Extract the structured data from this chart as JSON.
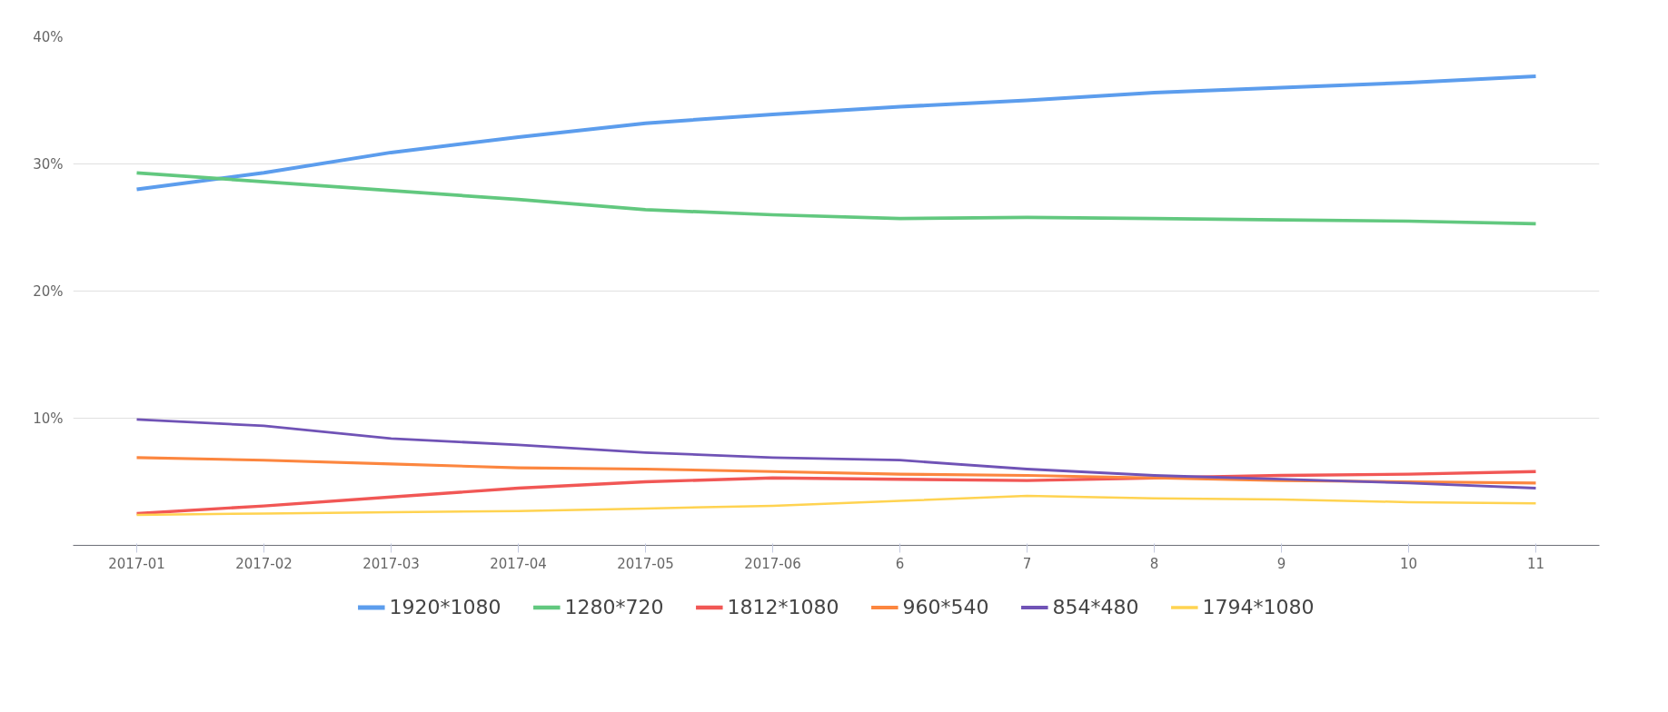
{
  "chart_data": {
    "type": "line",
    "categories": [
      "2017-01",
      "2017-02",
      "2017-03",
      "2017-04",
      "2017-05",
      "2017-06",
      "6",
      "7",
      "8",
      "9",
      "10",
      "11"
    ],
    "series": [
      {
        "name": "1920*1080",
        "color": "#5c9ded",
        "values": [
          28.0,
          29.3,
          30.9,
          32.1,
          33.2,
          33.9,
          34.5,
          35.0,
          35.6,
          36.0,
          36.4,
          36.9
        ]
      },
      {
        "name": "1280*720",
        "color": "#62c87f",
        "values": [
          29.3,
          28.6,
          27.9,
          27.2,
          26.4,
          26.0,
          25.7,
          25.8,
          25.7,
          25.6,
          25.5,
          25.3
        ]
      },
      {
        "name": "1812*1080",
        "color": "#f15755",
        "values": [
          2.5,
          3.1,
          3.8,
          4.5,
          5.0,
          5.3,
          5.2,
          5.1,
          5.3,
          5.5,
          5.6,
          5.8
        ]
      },
      {
        "name": "960*540",
        "color": "#fc863f",
        "values": [
          6.9,
          6.7,
          6.4,
          6.1,
          6.0,
          5.8,
          5.6,
          5.5,
          5.3,
          5.1,
          5.0,
          4.9
        ]
      },
      {
        "name": "854*480",
        "color": "#7053b6",
        "values": [
          9.9,
          9.4,
          8.4,
          7.9,
          7.3,
          6.9,
          6.7,
          6.0,
          5.5,
          5.2,
          4.9,
          4.5
        ]
      },
      {
        "name": "1794*1080",
        "color": "#ffd351",
        "values": [
          2.4,
          2.5,
          2.6,
          2.7,
          2.9,
          3.1,
          3.5,
          3.9,
          3.7,
          3.6,
          3.4,
          3.3
        ]
      }
    ],
    "ylim": [
      0,
      40
    ],
    "yticks": [
      {
        "value": 10,
        "label": "10%"
      },
      {
        "value": 20,
        "label": "20%"
      },
      {
        "value": 30,
        "label": "30%"
      },
      {
        "value": 40,
        "label": "40%"
      }
    ],
    "grid": "y",
    "legend": "bottom",
    "marker": "none",
    "line_style": "solid"
  }
}
